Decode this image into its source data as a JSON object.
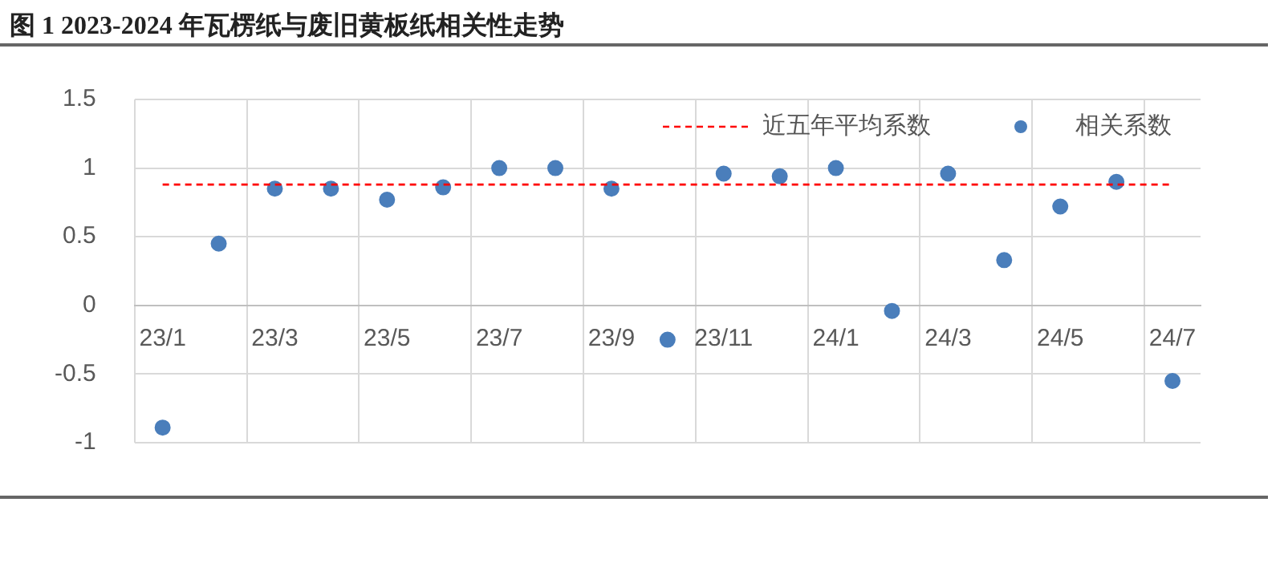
{
  "chart_data": {
    "type": "scatter",
    "title": "图 1 2023-2024 年瓦楞纸与废旧黄板纸相关性走势",
    "categories": [
      "23/1",
      null,
      "23/3",
      null,
      "23/5",
      null,
      "23/7",
      null,
      "23/9",
      null,
      "23/11",
      null,
      "24/1",
      null,
      "24/3",
      null,
      "24/5",
      null,
      "24/7"
    ],
    "series": [
      {
        "name": "相关系数",
        "color": "#4a7ebb",
        "values": [
          -0.89,
          0.45,
          0.85,
          0.85,
          0.77,
          0.86,
          1.0,
          1.0,
          0.85,
          -0.25,
          0.96,
          0.94,
          1.0,
          -0.04,
          0.96,
          0.33,
          0.72,
          0.9,
          -0.55
        ]
      }
    ],
    "ylim": [
      -1,
      1.5
    ],
    "yticks": [
      -1,
      -0.5,
      0,
      0.5,
      1,
      1.5
    ],
    "ref_lines": [
      {
        "axis": "y",
        "value": 0.88,
        "label": "近五年平均系数",
        "color": "#ff0000",
        "line_style": "dashed"
      }
    ],
    "grid": true,
    "legend": "top right",
    "marker": "circle"
  }
}
